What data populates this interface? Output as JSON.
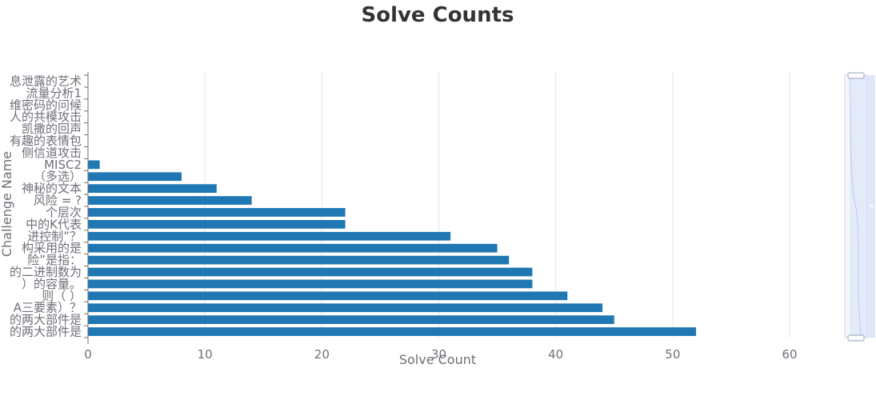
{
  "chart_data": {
    "type": "bar",
    "orientation": "horizontal",
    "title": "Solve Counts",
    "xlabel": "Solve Count",
    "ylabel": "Challenge Name",
    "xlim": [
      0,
      60
    ],
    "x_ticks": [
      "0",
      "10",
      "20",
      "30",
      "40",
      "50",
      "60"
    ],
    "grid": true,
    "bar_color": "#1f77b4",
    "categories": [
      "息泄露的艺术",
      "流量分析1",
      "维密码的问候",
      "人的共模攻击",
      "凯撒的回声",
      "有趣的表情包",
      "侧信道攻击",
      "MISC2",
      "（多选）",
      "神秘的文本",
      "风险 = ?",
      "个层次",
      "中的K代表",
      "进控制”？",
      "构采用的是",
      "险”是指：",
      "的二进制数为",
      "）的容量。",
      "则（ ）",
      "A三要素）？",
      "的两大部件是",
      "的两大部件是"
    ],
    "values": [
      0,
      0,
      0,
      0,
      0,
      0,
      0,
      1,
      8,
      11,
      14,
      22,
      22,
      31,
      35,
      36,
      38,
      38,
      41,
      44,
      45,
      52
    ]
  }
}
